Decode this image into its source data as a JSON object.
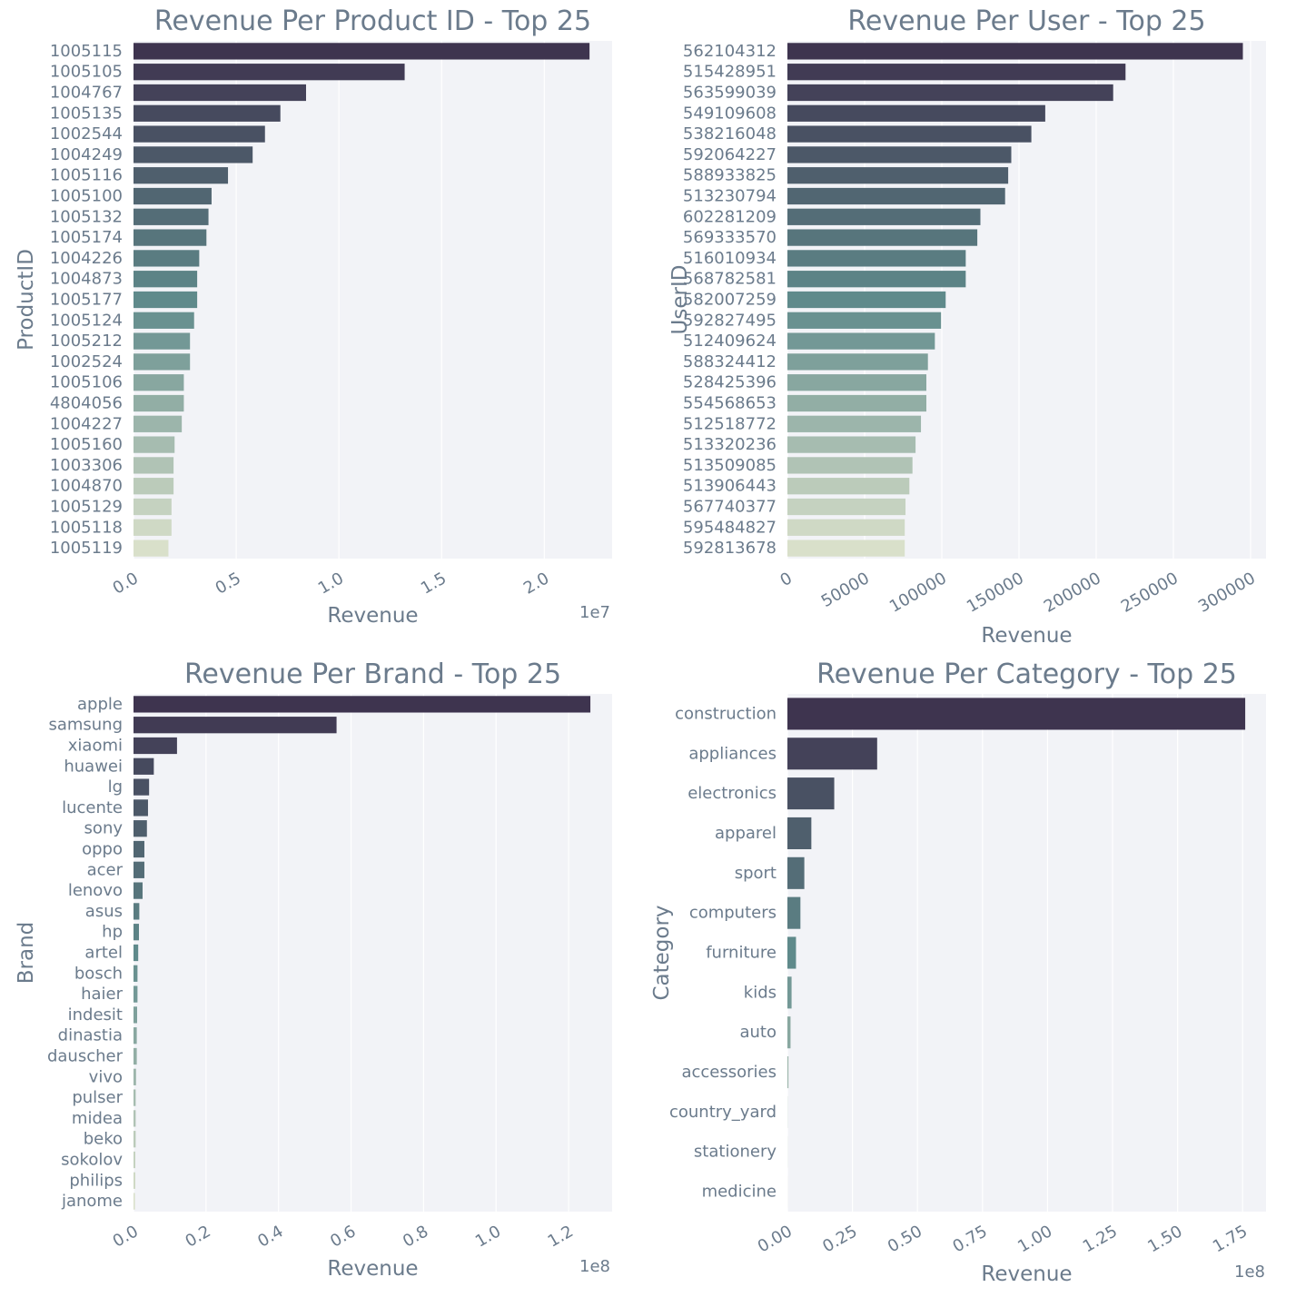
{
  "style": {
    "text_color": "#6b7b8c",
    "plot_background": "#f2f3f7",
    "gridline_color": "#ffffff",
    "palette_start": "#3e344f",
    "palette_mid": "#5f8a8b",
    "palette_end": "#d9e0ca"
  },
  "chart_data": [
    {
      "type": "bar",
      "orientation": "horizontal",
      "title": "Revenue Per Product ID - Top 25",
      "xlabel": "Revenue",
      "ylabel": "ProductID",
      "x_multiplier_label": "1e7",
      "xlim": [
        0,
        2.33
      ],
      "xticks": [
        0.0,
        0.5,
        1.0,
        1.5,
        2.0
      ],
      "xtick_labels": [
        "0.0",
        "0.5",
        "1.0",
        "1.5",
        "2.0"
      ],
      "grid": "vertical",
      "categories": [
        "1005115",
        "1005105",
        "1004767",
        "1005135",
        "1002544",
        "1004249",
        "1005116",
        "1005100",
        "1005132",
        "1005174",
        "1004226",
        "1004873",
        "1005177",
        "1005124",
        "1005212",
        "1002524",
        "1005106",
        "4804056",
        "1004227",
        "1005160",
        "1003306",
        "1004870",
        "1005129",
        "1005118",
        "1005119"
      ],
      "values": [
        2.22,
        1.32,
        0.84,
        0.715,
        0.64,
        0.58,
        0.46,
        0.38,
        0.365,
        0.355,
        0.32,
        0.31,
        0.31,
        0.295,
        0.275,
        0.275,
        0.245,
        0.245,
        0.235,
        0.2,
        0.195,
        0.195,
        0.185,
        0.185,
        0.17
      ]
    },
    {
      "type": "bar",
      "orientation": "horizontal",
      "title": "Revenue Per User - Top 25",
      "xlabel": "Revenue",
      "ylabel": "UserID",
      "x_multiplier_label": "",
      "xlim": [
        0,
        310000
      ],
      "xticks": [
        0,
        50000,
        100000,
        150000,
        200000,
        250000,
        300000
      ],
      "xtick_labels": [
        "0",
        "50000",
        "100000",
        "150000",
        "200000",
        "250000",
        "300000"
      ],
      "grid": "vertical",
      "categories": [
        "562104312",
        "515428951",
        "563599039",
        "549109608",
        "538216048",
        "592064227",
        "588933825",
        "513230794",
        "602281209",
        "569333570",
        "516010934",
        "568782581",
        "582007259",
        "592827495",
        "512409624",
        "588324412",
        "528425396",
        "554568653",
        "512518772",
        "513320236",
        "513509085",
        "513906443",
        "567740377",
        "595484827",
        "592813678"
      ],
      "values": [
        295000,
        219000,
        211000,
        167000,
        158000,
        145000,
        143000,
        141000,
        125000,
        123000,
        115500,
        115500,
        102500,
        99500,
        95500,
        91000,
        90000,
        90000,
        86500,
        83000,
        81000,
        79000,
        76500,
        76000,
        76000
      ]
    },
    {
      "type": "bar",
      "orientation": "horizontal",
      "title": "Revenue Per Brand - Top 25",
      "xlabel": "Revenue",
      "ylabel": "Brand",
      "x_multiplier_label": "1e8",
      "xlim": [
        0,
        1.32
      ],
      "xticks": [
        0.0,
        0.2,
        0.4,
        0.6,
        0.8,
        1.0,
        1.2
      ],
      "xtick_labels": [
        "0.0",
        "0.2",
        "0.4",
        "0.6",
        "0.8",
        "1.0",
        "1.2"
      ],
      "grid": "vertical",
      "categories": [
        "apple",
        "samsung",
        "xiaomi",
        "huawei",
        "lg",
        "lucente",
        "sony",
        "oppo",
        "acer",
        "lenovo",
        "asus",
        "hp",
        "artel",
        "bosch",
        "haier",
        "indesit",
        "dinastia",
        "dauscher",
        "vivo",
        "pulser",
        "midea",
        "beko",
        "sokolov",
        "philips",
        "janome"
      ],
      "values": [
        1.26,
        0.56,
        0.12,
        0.056,
        0.043,
        0.04,
        0.037,
        0.03,
        0.03,
        0.025,
        0.016,
        0.015,
        0.013,
        0.011,
        0.011,
        0.01,
        0.009,
        0.009,
        0.007,
        0.006,
        0.006,
        0.006,
        0.005,
        0.005,
        0.004
      ]
    },
    {
      "type": "bar",
      "orientation": "horizontal",
      "title": "Revenue Per Category - Top 25",
      "xlabel": "Revenue",
      "ylabel": "Category",
      "x_multiplier_label": "1e8",
      "xlim": [
        0,
        1.84
      ],
      "xticks": [
        0.0,
        0.25,
        0.5,
        0.75,
        1.0,
        1.25,
        1.5,
        1.75
      ],
      "xtick_labels": [
        "0.00",
        "0.25",
        "0.50",
        "0.75",
        "1.00",
        "1.25",
        "1.50",
        "1.75"
      ],
      "grid": "vertical",
      "categories": [
        "construction",
        "appliances",
        "electronics",
        "apparel",
        "sport",
        "computers",
        "furniture",
        "kids",
        "auto",
        "accessories",
        "country_yard",
        "stationery",
        "medicine"
      ],
      "values": [
        1.76,
        0.345,
        0.18,
        0.092,
        0.065,
        0.05,
        0.033,
        0.016,
        0.012,
        0.004,
        0.0005,
        0.0003,
        0.0002
      ]
    }
  ]
}
